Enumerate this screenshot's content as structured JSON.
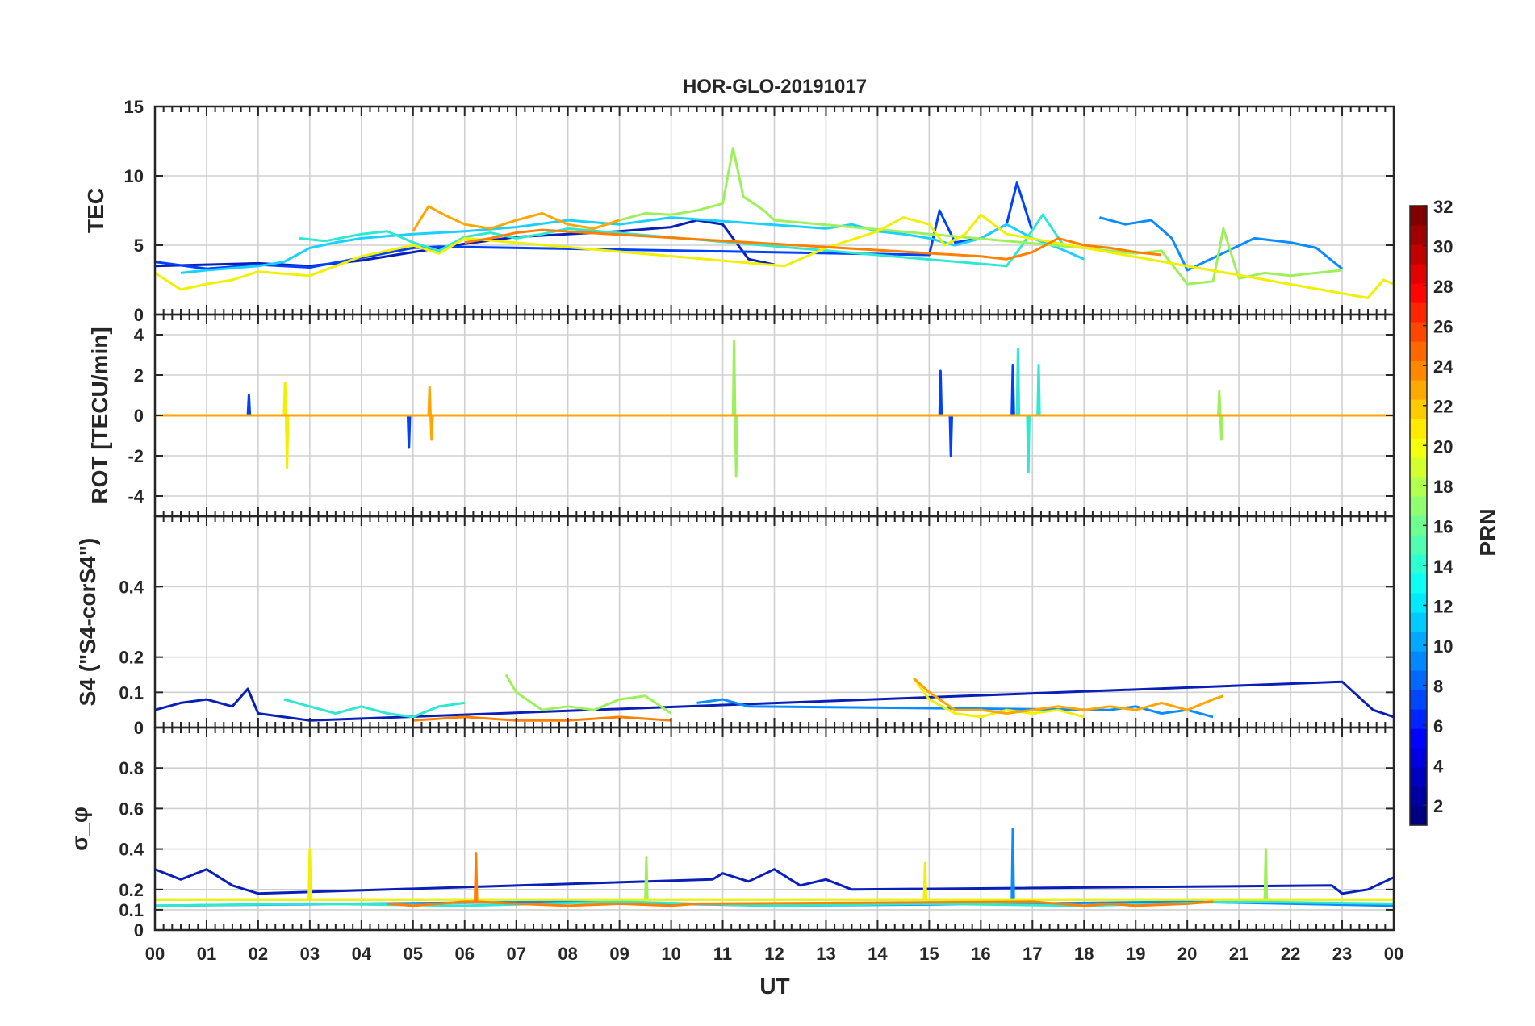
{
  "title": "HOR-GLO-20191017",
  "xlabel": "UT",
  "x_tick_labels": [
    "00",
    "01",
    "02",
    "03",
    "04",
    "05",
    "06",
    "07",
    "08",
    "09",
    "10",
    "11",
    "12",
    "13",
    "14",
    "15",
    "16",
    "17",
    "18",
    "19",
    "20",
    "21",
    "22",
    "23",
    "00"
  ],
  "colorbar": {
    "label": "PRN",
    "range": [
      1,
      32
    ],
    "tick_labels": [
      "2",
      "4",
      "6",
      "8",
      "10",
      "12",
      "14",
      "16",
      "18",
      "20",
      "22",
      "24",
      "26",
      "28",
      "30",
      "32"
    ],
    "colormap": "jet"
  },
  "chart_data": [
    {
      "type": "line",
      "panel": "TEC",
      "ylabel": "TEC",
      "ylim": [
        0,
        15
      ],
      "y_tick_labels": [
        "0",
        "5",
        "10",
        "15"
      ],
      "grid": true,
      "series": [
        {
          "prn": 2,
          "color": "#0a1fb8",
          "x": [
            0,
            1,
            2,
            3,
            4,
            5,
            6,
            7,
            8,
            9,
            10,
            10.5,
            11,
            11.5,
            12
          ],
          "y": [
            3.5,
            3.6,
            3.7,
            3.5,
            3.9,
            4.5,
            5.1,
            5.6,
            5.8,
            6.0,
            6.3,
            6.8,
            6.5,
            4.0,
            3.6
          ]
        },
        {
          "prn": 4,
          "color": "#0040ff",
          "x": [
            0,
            1,
            2,
            3,
            4,
            5,
            5.5,
            15,
            15.2,
            15.5,
            16,
            16.5,
            16.7,
            17
          ],
          "y": [
            3.8,
            3.3,
            3.6,
            3.4,
            4.1,
            4.8,
            4.9,
            4.3,
            7.5,
            5.2,
            5.5,
            6.5,
            9.5,
            6.0
          ]
        },
        {
          "prn": 7,
          "color": "#0a8cff",
          "x": [
            18.3,
            18.8,
            19.3,
            19.7,
            20.0,
            21.3,
            22,
            22.5,
            23
          ],
          "y": [
            7.0,
            6.5,
            6.8,
            5.5,
            3.2,
            5.5,
            5.2,
            4.8,
            3.3
          ]
        },
        {
          "prn": 12,
          "color": "#19d0ff",
          "x": [
            0.5,
            1,
            2,
            2.5,
            3,
            3.5,
            4,
            5,
            6,
            7,
            8,
            9,
            10,
            13,
            13.5,
            14,
            14.5,
            15,
            15.5,
            16,
            16.5,
            17,
            17.5,
            18
          ],
          "y": [
            3.0,
            3.2,
            3.5,
            3.8,
            4.8,
            5.2,
            5.5,
            5.8,
            6.0,
            6.3,
            6.8,
            6.5,
            7.0,
            6.2,
            6.5,
            6.0,
            5.8,
            5.5,
            5.0,
            5.5,
            6.5,
            5.5,
            4.8,
            4.0
          ]
        },
        {
          "prn": 14,
          "color": "#2ee8d0",
          "x": [
            2.8,
            3.3,
            4,
            4.5,
            5,
            5.5,
            6,
            6.5,
            7,
            7.5,
            8,
            16.5,
            16.8,
            17.2,
            17.6
          ],
          "y": [
            5.5,
            5.3,
            5.8,
            6.0,
            5.2,
            4.6,
            5.6,
            5.9,
            5.5,
            5.8,
            6.2,
            3.5,
            5.0,
            7.2,
            5.0
          ]
        },
        {
          "prn": 17,
          "color": "#9ef05a",
          "x": [
            8.5,
            9,
            9.5,
            10,
            10.5,
            11,
            11.2,
            11.4,
            11.8,
            12.0,
            18,
            18.5,
            19,
            19.5,
            20,
            20.5,
            20.7,
            21,
            21.5,
            22,
            22.5,
            23
          ],
          "y": [
            6.2,
            6.8,
            7.3,
            7.2,
            7.5,
            8.0,
            12.0,
            8.5,
            7.5,
            6.8,
            4.8,
            4.6,
            4.4,
            4.6,
            2.2,
            2.4,
            6.2,
            2.6,
            3.0,
            2.8,
            3.0,
            3.2
          ]
        },
        {
          "prn": 20,
          "color": "#f0f000",
          "x": [
            0,
            0.5,
            1,
            1.5,
            2,
            3,
            4,
            4.5,
            5,
            5.5,
            6,
            12.2,
            12.5,
            13,
            14,
            14.5,
            15,
            15.3,
            15.7,
            16,
            16.5,
            23.5,
            23.8,
            24
          ],
          "y": [
            3.0,
            1.8,
            2.2,
            2.5,
            3.1,
            2.8,
            4.2,
            4.6,
            5.0,
            4.4,
            5.5,
            3.5,
            4.0,
            4.8,
            6.0,
            7.0,
            6.5,
            5.0,
            5.8,
            7.2,
            5.8,
            1.2,
            2.5,
            2.2
          ]
        },
        {
          "prn": 22,
          "color": "#ffa500",
          "x": [
            5,
            5.3,
            5.6,
            6,
            6.5,
            7,
            7.5,
            8,
            8.5,
            9
          ],
          "y": [
            6.0,
            7.8,
            7.2,
            6.5,
            6.2,
            6.8,
            7.3,
            6.5,
            6.2,
            6.8
          ]
        },
        {
          "prn": 24,
          "color": "#ff8000",
          "x": [
            6,
            6.5,
            7,
            7.5,
            16,
            16.5,
            17,
            17.5,
            18,
            18.5,
            19,
            19.5
          ],
          "y": [
            5.2,
            5.5,
            5.9,
            6.1,
            4.2,
            4.0,
            4.5,
            5.5,
            5.0,
            4.8,
            4.5,
            4.3
          ]
        }
      ]
    },
    {
      "type": "line",
      "panel": "ROT",
      "ylabel": "ROT [TECU/min]",
      "ylim": [
        -5,
        5
      ],
      "y_tick_labels": [
        "-4",
        "-2",
        "0",
        "2",
        "4"
      ],
      "grid": true,
      "series": [
        {
          "prn": 4,
          "color": "#0040ff",
          "x": [
            0,
            1.8,
            1.82,
            1.84,
            4.9,
            4.92,
            4.94,
            15.2,
            15.22,
            15.24,
            15.4,
            15.42,
            15.44,
            16.6,
            16.62,
            16.64,
            24
          ],
          "y": [
            0,
            0,
            1.0,
            0,
            0,
            -1.6,
            0,
            0,
            2.2,
            0,
            0,
            -2.0,
            0,
            0,
            2.5,
            0,
            0
          ]
        },
        {
          "prn": 14,
          "color": "#2ee8d0",
          "x": [
            0,
            16.7,
            16.72,
            16.74,
            16.9,
            16.92,
            16.94,
            17.1,
            17.12,
            17.14,
            24
          ],
          "y": [
            0,
            0,
            3.3,
            0,
            0,
            -2.8,
            0,
            0,
            2.5,
            0,
            0
          ]
        },
        {
          "prn": 17,
          "color": "#9ef05a",
          "x": [
            0,
            11.2,
            11.22,
            11.24,
            11.26,
            11.28,
            11.3,
            20.6,
            20.62,
            20.64,
            20.66,
            20.68,
            24
          ],
          "y": [
            0,
            0,
            3.7,
            0,
            -3.0,
            0,
            0,
            0,
            1.2,
            0,
            -1.2,
            0,
            0
          ]
        },
        {
          "prn": 20,
          "color": "#f0f000",
          "x": [
            0,
            2.5,
            2.52,
            2.54,
            2.56,
            2.58,
            24
          ],
          "y": [
            0,
            0,
            1.6,
            0,
            -2.6,
            0,
            0
          ]
        },
        {
          "prn": 22,
          "color": "#ffa500",
          "x": [
            0,
            5.3,
            5.32,
            5.34,
            5.36,
            5.38,
            24
          ],
          "y": [
            0,
            0,
            1.4,
            0,
            -1.2,
            0,
            0
          ]
        }
      ]
    },
    {
      "type": "line",
      "panel": "S4",
      "ylabel": "S4 (\"S4-corS4\")",
      "ylim": [
        0,
        0.6
      ],
      "y_tick_labels": [
        "0",
        "0.1",
        "0.2",
        "0.4"
      ],
      "grid": true,
      "series": [
        {
          "prn": 2,
          "color": "#0a1fb8",
          "x": [
            0,
            0.5,
            1,
            1.5,
            1.8,
            2,
            2.5,
            3,
            23,
            23.3,
            23.6,
            24
          ],
          "y": [
            0.05,
            0.07,
            0.08,
            0.06,
            0.11,
            0.04,
            0.03,
            0.02,
            0.13,
            0.09,
            0.05,
            0.03
          ]
        },
        {
          "prn": 7,
          "color": "#0a8cff",
          "x": [
            10.5,
            11,
            11.5,
            18.5,
            19,
            19.5,
            20,
            20.5
          ],
          "y": [
            0.07,
            0.08,
            0.06,
            0.05,
            0.06,
            0.04,
            0.05,
            0.03
          ]
        },
        {
          "prn": 14,
          "color": "#2ee8d0",
          "x": [
            2.5,
            3,
            3.5,
            4,
            4.5,
            5,
            5.5,
            6
          ],
          "y": [
            0.08,
            0.06,
            0.04,
            0.06,
            0.04,
            0.03,
            0.06,
            0.07
          ]
        },
        {
          "prn": 17,
          "color": "#9ef05a",
          "x": [
            6.8,
            7,
            7.5,
            8,
            8.5,
            9,
            9.5,
            10
          ],
          "y": [
            0.15,
            0.1,
            0.05,
            0.06,
            0.05,
            0.08,
            0.09,
            0.04
          ]
        },
        {
          "prn": 20,
          "color": "#f0f000",
          "x": [
            14.7,
            15,
            15.5,
            16,
            16.5,
            17,
            17.5,
            18
          ],
          "y": [
            0.14,
            0.08,
            0.04,
            0.03,
            0.05,
            0.04,
            0.05,
            0.03
          ]
        },
        {
          "prn": 22,
          "color": "#ffa500",
          "x": [
            14.7,
            15,
            15.5,
            16,
            16.5,
            17,
            17.5,
            18,
            18.5,
            19,
            19.5,
            20,
            20.5,
            20.7
          ],
          "y": [
            0.14,
            0.1,
            0.05,
            0.05,
            0.04,
            0.05,
            0.06,
            0.05,
            0.06,
            0.05,
            0.07,
            0.05,
            0.08,
            0.09
          ]
        },
        {
          "prn": 24,
          "color": "#ff8000",
          "x": [
            5,
            6,
            7,
            8,
            9,
            10
          ],
          "y": [
            0.02,
            0.03,
            0.02,
            0.02,
            0.03,
            0.02
          ]
        }
      ]
    },
    {
      "type": "line",
      "panel": "sigma_phi",
      "ylabel": "σ_φ",
      "ylim": [
        0,
        1
      ],
      "y_tick_labels": [
        "0",
        "0.1",
        "0.2",
        "0.4",
        "0.6",
        "0.8"
      ],
      "grid": true,
      "series": [
        {
          "prn": 2,
          "color": "#0a1fb8",
          "x": [
            0,
            0.5,
            1,
            1.5,
            2,
            10.8,
            11,
            11.5,
            12,
            12.5,
            13,
            13.5,
            22.8,
            23,
            23.5,
            24
          ],
          "y": [
            0.3,
            0.25,
            0.3,
            0.22,
            0.18,
            0.25,
            0.28,
            0.24,
            0.3,
            0.22,
            0.25,
            0.2,
            0.22,
            0.18,
            0.2,
            0.26
          ]
        },
        {
          "prn": 7,
          "color": "#0a8cff",
          "x": [
            0,
            4,
            8,
            12,
            16.6,
            16.62,
            16.64,
            20,
            24
          ],
          "y": [
            0.12,
            0.13,
            0.14,
            0.12,
            0.13,
            0.5,
            0.13,
            0.14,
            0.12
          ]
        },
        {
          "prn": 14,
          "color": "#2ee8d0",
          "x": [
            0,
            3,
            6,
            9,
            12,
            15,
            18,
            21,
            24
          ],
          "y": [
            0.12,
            0.13,
            0.12,
            0.14,
            0.12,
            0.13,
            0.12,
            0.14,
            0.13
          ]
        },
        {
          "prn": 17,
          "color": "#9ef05a",
          "x": [
            0,
            9.5,
            9.52,
            9.54,
            21.5,
            21.52,
            21.54,
            24
          ],
          "y": [
            0.15,
            0.15,
            0.36,
            0.15,
            0.15,
            0.4,
            0.15,
            0.15
          ]
        },
        {
          "prn": 20,
          "color": "#f0f000",
          "x": [
            0,
            2.98,
            3.0,
            3.02,
            14.9,
            14.92,
            14.94,
            24
          ],
          "y": [
            0.15,
            0.15,
            0.4,
            0.15,
            0.15,
            0.33,
            0.15,
            0.15
          ]
        },
        {
          "prn": 24,
          "color": "#ff8000",
          "x": [
            4.5,
            5,
            6,
            6.2,
            6.22,
            6.24,
            7,
            8,
            9,
            10,
            10.5,
            17,
            18,
            18.5,
            19,
            20,
            20.5
          ],
          "y": [
            0.13,
            0.12,
            0.14,
            0.14,
            0.38,
            0.14,
            0.13,
            0.12,
            0.13,
            0.12,
            0.13,
            0.14,
            0.12,
            0.13,
            0.12,
            0.13,
            0.14
          ]
        }
      ]
    }
  ]
}
